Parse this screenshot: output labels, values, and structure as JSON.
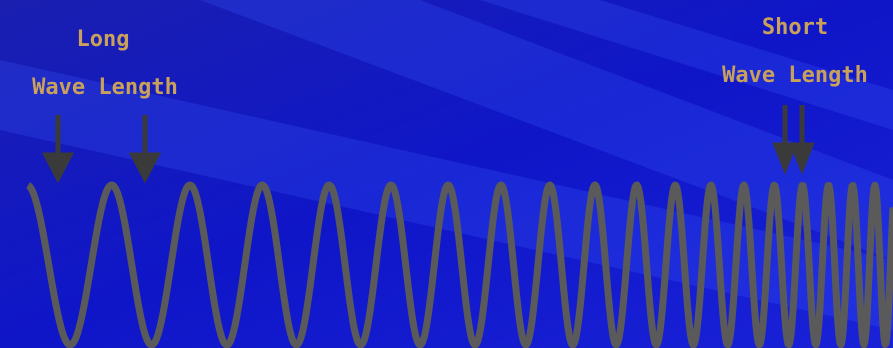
{
  "labels": {
    "long": {
      "line1": "Long",
      "line2": "Wave Length"
    },
    "short": {
      "line1": "Short",
      "line2": "Wave Length"
    }
  }
}
